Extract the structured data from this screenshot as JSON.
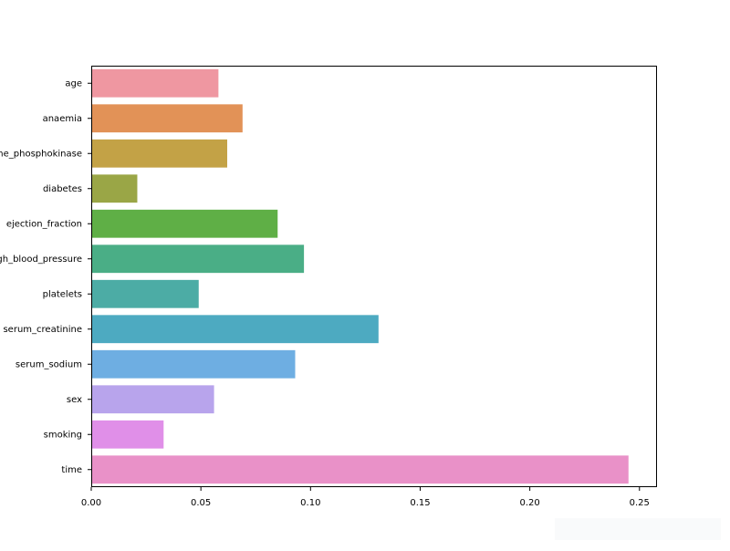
{
  "chart_data": {
    "type": "bar",
    "orientation": "horizontal",
    "title": "",
    "xlabel": "",
    "ylabel": "",
    "categories": [
      "age",
      "anaemia",
      "creatinine_phosphokinase",
      "diabetes",
      "ejection_fraction",
      "high_blood_pressure",
      "platelets",
      "serum_creatinine",
      "serum_sodium",
      "sex",
      "smoking",
      "time"
    ],
    "values": [
      0.058,
      0.069,
      0.062,
      0.021,
      0.085,
      0.097,
      0.049,
      0.131,
      0.093,
      0.056,
      0.033,
      0.245
    ],
    "colors": [
      "#ef97a1",
      "#e29257",
      "#c3a246",
      "#9aa646",
      "#5faf46",
      "#4aae86",
      "#4caca5",
      "#4daac1",
      "#6eaee2",
      "#b8a4ec",
      "#e08fe8",
      "#e991c8"
    ],
    "xlim": [
      0,
      0.258
    ],
    "xticks": [
      0.0,
      0.05,
      0.1,
      0.15,
      0.2,
      0.25
    ],
    "xtick_labels": [
      "0.00",
      "0.05",
      "0.10",
      "0.15",
      "0.20",
      "0.25"
    ],
    "grid": false,
    "legend": "none"
  }
}
